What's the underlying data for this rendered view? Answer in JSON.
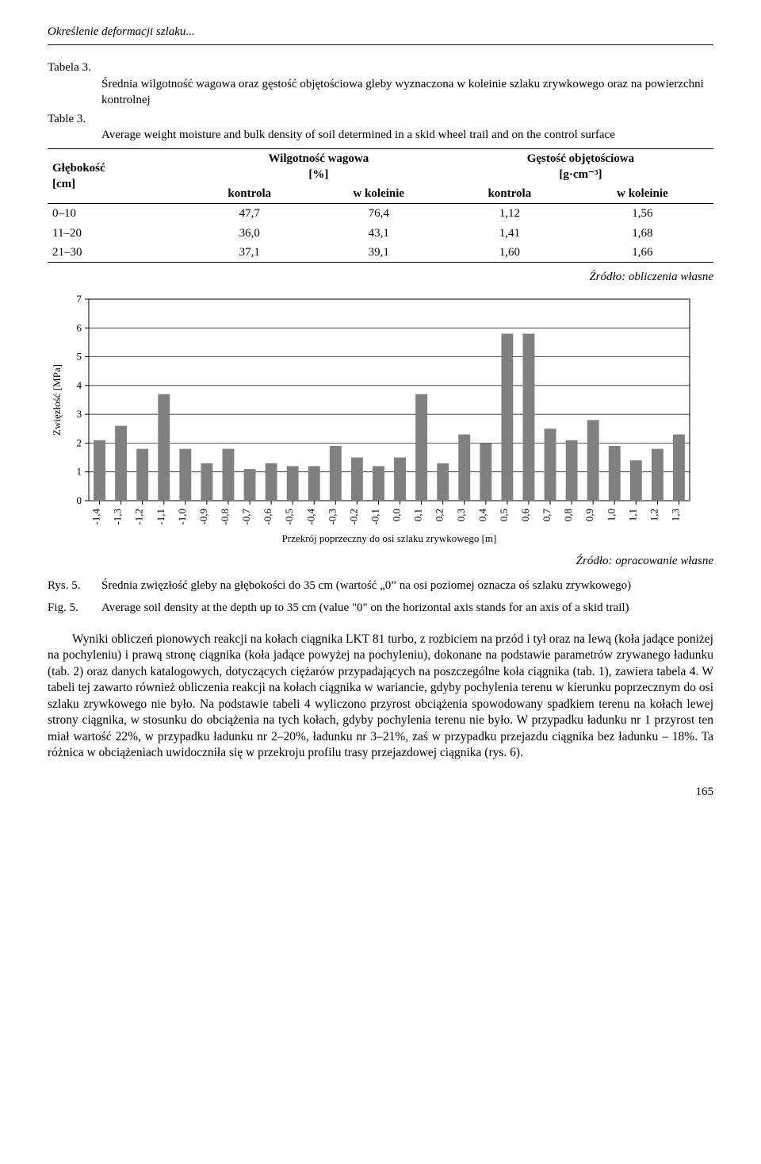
{
  "header": {
    "running_title": "Określenie deformacji szlaku..."
  },
  "table": {
    "caption_pl_label": "Tabela 3.",
    "caption_pl_text": "Średnia wilgotność wagowa oraz gęstość objętościowa gleby wyznaczona w koleinie szlaku zrywkowego oraz na powierzchni kontrolnej",
    "caption_en_label": "Table 3.",
    "caption_en_text": "Average weight moisture and bulk density of soil determined in a skid wheel trail and on the control surface",
    "header_depth": "Głębokość\n[cm]",
    "header_moisture": "Wilgotność wagowa\n[%]",
    "header_density": "Gęstość objętościowa\n[g·cm⁻³]",
    "sub_kontrola": "kontrola",
    "sub_wkoleinie": "w koleinie",
    "rows": [
      {
        "depth": "0–10",
        "mk": "47,7",
        "mw": "76,4",
        "dk": "1,12",
        "dw": "1,56"
      },
      {
        "depth": "11–20",
        "mk": "36,0",
        "mw": "43,1",
        "dk": "1,41",
        "dw": "1,68"
      },
      {
        "depth": "21–30",
        "mk": "37,1",
        "mw": "39,1",
        "dk": "1,60",
        "dw": "1,66"
      }
    ],
    "source": "Źródło: obliczenia własne"
  },
  "chart": {
    "type": "bar",
    "ylabel": "Zwięzłość [MPa]",
    "xlabel": "Przekrój poprzeczny do osi szlaku zrywkowego [m]",
    "ylim": [
      0,
      7
    ],
    "ytick_step": 1,
    "yticks": [
      "0",
      "1",
      "2",
      "3",
      "4",
      "5",
      "6",
      "7"
    ],
    "categories": [
      "-1,4",
      "-1,3",
      "-1,2",
      "-1,1",
      "-1,0",
      "-0,9",
      "-0,8",
      "-0,7",
      "-0,6",
      "-0,5",
      "-0,4",
      "-0,3",
      "-0,2",
      "-0,1",
      "0,0",
      "0,1",
      "0,2",
      "0,3",
      "0,4",
      "0,5",
      "0,6",
      "0,7",
      "0,8",
      "0,9",
      "1,0",
      "1,1",
      "1,2",
      "1,3"
    ],
    "values": [
      2.1,
      2.6,
      1.8,
      3.7,
      1.8,
      1.3,
      1.8,
      1.1,
      1.3,
      1.2,
      1.2,
      1.9,
      1.5,
      1.2,
      1.5,
      3.7,
      1.3,
      2.3,
      2.0,
      5.8,
      5.8,
      2.5,
      2.1,
      2.8,
      1.9,
      1.4,
      1.8,
      2.3
    ],
    "bar_color": "#808080",
    "grid_color": "#000000",
    "axis_color": "#000000",
    "background_color": "#ffffff",
    "label_fontsize": 13,
    "tick_fontsize": 13,
    "bar_width_ratio": 0.55,
    "aspect_w": 820,
    "aspect_h": 320,
    "source": "Źródło: opracowanie własne"
  },
  "figure_caption": {
    "pl_label": "Rys. 5.",
    "pl_text": "Średnia zwięzłość gleby na głębokości do 35 cm (wartość „0” na osi poziomej oznacza oś szlaku zrywkowego)",
    "en_label": "Fig. 5.",
    "en_text": "Average soil density at the depth up to 35 cm (value \"0\" on the horizontal axis stands for an axis of a skid trail)"
  },
  "body": {
    "paragraph": "Wyniki obliczeń pionowych reakcji na kołach ciągnika LKT 81 turbo, z rozbiciem na przód i tył oraz na lewą (koła jadące poniżej na pochyleniu) i prawą stronę ciągnika (koła jadące powyżej na pochyleniu), dokonane na podstawie parametrów zrywanego ładunku (tab. 2) oraz danych katalogowych, dotyczących ciężarów przypadających na poszczególne koła ciągnika (tab. 1), zawiera tabela 4. W tabeli tej zawarto również obliczenia reakcji na kołach ciągnika w wariancie, gdyby pochylenia terenu w kierunku poprzecznym do osi szlaku zrywkowego nie było. Na podstawie tabeli 4 wyliczono przyrost obciążenia spowodowany spadkiem terenu na kołach lewej strony ciągnika, w stosunku do obciążenia na tych kołach, gdyby pochylenia terenu nie było. W przypadku ładunku nr 1 przyrost ten miał wartość 22%, w przypadku ładunku nr 2–20%, ładunku nr 3–21%, zaś w przypadku przejazdu ciągnika bez ładunku – 18%. Ta różnica w obciążeniach uwidoczniła się w przekroju profilu trasy przejazdowej ciągnika (rys. 6)."
  },
  "page_number": "165"
}
